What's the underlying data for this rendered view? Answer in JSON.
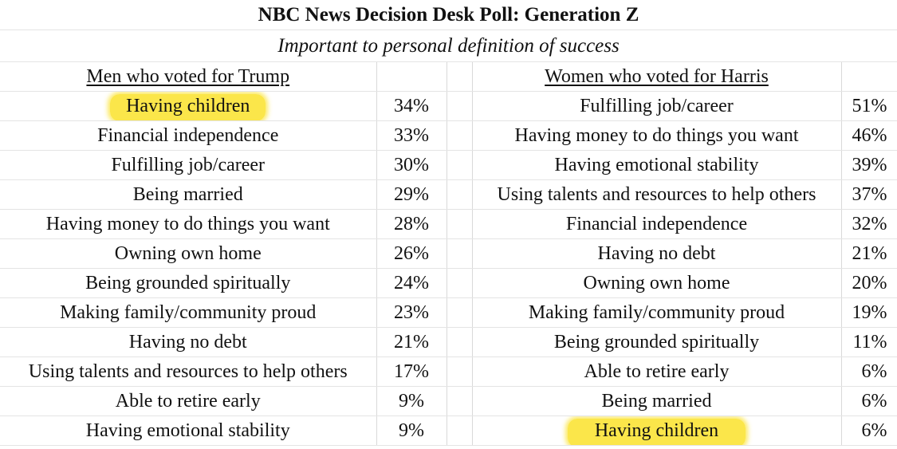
{
  "title": "NBC News Decision Desk Poll: Generation Z",
  "subtitle": "Important to personal definition of success",
  "left": {
    "header": "Men who voted for Trump",
    "rows": [
      {
        "label": "Having children",
        "value": "34%",
        "highlighted": true
      },
      {
        "label": "Financial independence",
        "value": "33%"
      },
      {
        "label": "Fulfilling job/career",
        "value": "30%"
      },
      {
        "label": "Being married",
        "value": "29%"
      },
      {
        "label": "Having money to do things you want",
        "value": "28%"
      },
      {
        "label": "Owning own home",
        "value": "26%"
      },
      {
        "label": "Being grounded spiritually",
        "value": "24%"
      },
      {
        "label": "Making family/community proud",
        "value": "23%"
      },
      {
        "label": "Having no debt",
        "value": "21%"
      },
      {
        "label": "Using talents and resources to help others",
        "value": "17%"
      },
      {
        "label": "Able to retire early",
        "value": "9%"
      },
      {
        "label": "Having emotional stability",
        "value": "9%"
      }
    ]
  },
  "right": {
    "header": "Women who voted for Harris",
    "rows": [
      {
        "label": "Fulfilling job/career",
        "value": "51%"
      },
      {
        "label": "Having money to do things you want",
        "value": "46%"
      },
      {
        "label": "Having emotional stability",
        "value": "39%"
      },
      {
        "label": "Using talents and resources to help others",
        "value": "37%"
      },
      {
        "label": "Financial independence",
        "value": "32%"
      },
      {
        "label": "Having no debt",
        "value": "21%"
      },
      {
        "label": "Owning own home",
        "value": "20%"
      },
      {
        "label": "Making family/community proud",
        "value": "19%"
      },
      {
        "label": "Being grounded spiritually",
        "value": "11%"
      },
      {
        "label": "Able to retire early",
        "value": "6%"
      },
      {
        "label": "Being married",
        "value": "6%"
      },
      {
        "label": "Having children",
        "value": "6%",
        "highlighted": true
      }
    ]
  },
  "colors": {
    "highlight": "#fbe64a",
    "gridline": "#d9d9d9"
  }
}
